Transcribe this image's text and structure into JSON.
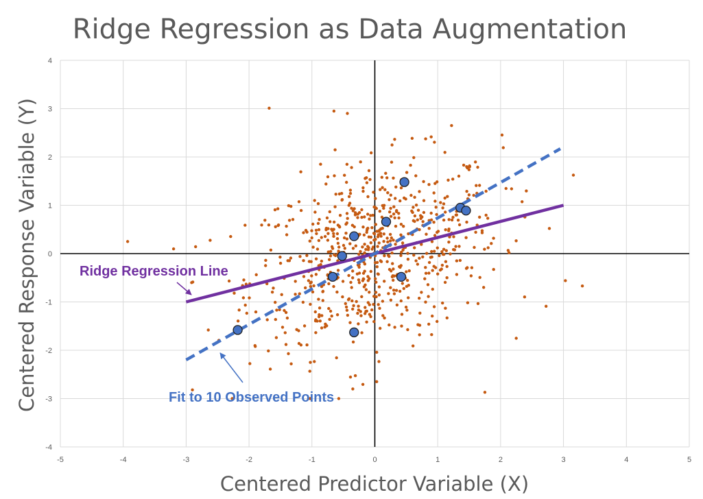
{
  "chart_data": {
    "type": "scatter",
    "title": "Ridge Regression as Data Augmentation",
    "xlabel": "Centered Predictor Variable (X)",
    "ylabel": "Centered Response Variable (Y)",
    "xlim": [
      -5,
      5
    ],
    "ylim": [
      -4,
      4
    ],
    "x_ticks": [
      -5,
      -4,
      -3,
      -2,
      -1,
      0,
      1,
      2,
      3,
      4,
      5
    ],
    "y_ticks": [
      -4,
      -3,
      -2,
      -1,
      0,
      1,
      2,
      3,
      4
    ],
    "grid": true,
    "colors": {
      "augmented_points": "#c55a11",
      "observed_points": "#4472c4",
      "ridge_line": "#7030a0",
      "ols_line": "#4472c4",
      "gridline": "#d9d9d9",
      "axis_zero": "#000000",
      "text": "#595959"
    },
    "observed_points": [
      {
        "x": -2.18,
        "y": -1.58
      },
      {
        "x": -0.67,
        "y": -0.48
      },
      {
        "x": -0.52,
        "y": -0.05
      },
      {
        "x": -0.33,
        "y": 0.36
      },
      {
        "x": -0.33,
        "y": -1.63
      },
      {
        "x": 0.18,
        "y": 0.66
      },
      {
        "x": 0.42,
        "y": -0.48
      },
      {
        "x": 0.47,
        "y": 1.48
      },
      {
        "x": 1.36,
        "y": 0.95
      },
      {
        "x": 1.45,
        "y": 0.89
      }
    ],
    "lines": [
      {
        "name": "Ridge Regression Line",
        "x": [
          -3,
          3
        ],
        "y": [
          -1.0,
          1.0
        ],
        "style": "solid"
      },
      {
        "name": "Fit to 10 Observed Points",
        "x": [
          -3,
          2.95
        ],
        "y": [
          -2.2,
          2.17
        ],
        "style": "dashed"
      }
    ],
    "augmented_cloud": {
      "count": 720,
      "note_points": [
        {
          "x": -3.93,
          "y": 0.25
        },
        {
          "x": -1.68,
          "y": 3.01
        },
        {
          "x": -0.65,
          "y": 2.95
        },
        {
          "x": 3.3,
          "y": -0.67
        },
        {
          "x": 3.03,
          "y": -0.56
        },
        {
          "x": 1.75,
          "y": -2.87
        },
        {
          "x": 0.03,
          "y": -2.65
        },
        {
          "x": -0.35,
          "y": -2.8
        },
        {
          "x": -2.9,
          "y": -2.82
        },
        {
          "x": 1.22,
          "y": 2.65
        }
      ]
    },
    "annotations": [
      {
        "text": "Ridge Regression Line",
        "color": "#7030a0"
      },
      {
        "text": "Fit to 10 Observed Points",
        "color": "#4472c4"
      }
    ]
  }
}
